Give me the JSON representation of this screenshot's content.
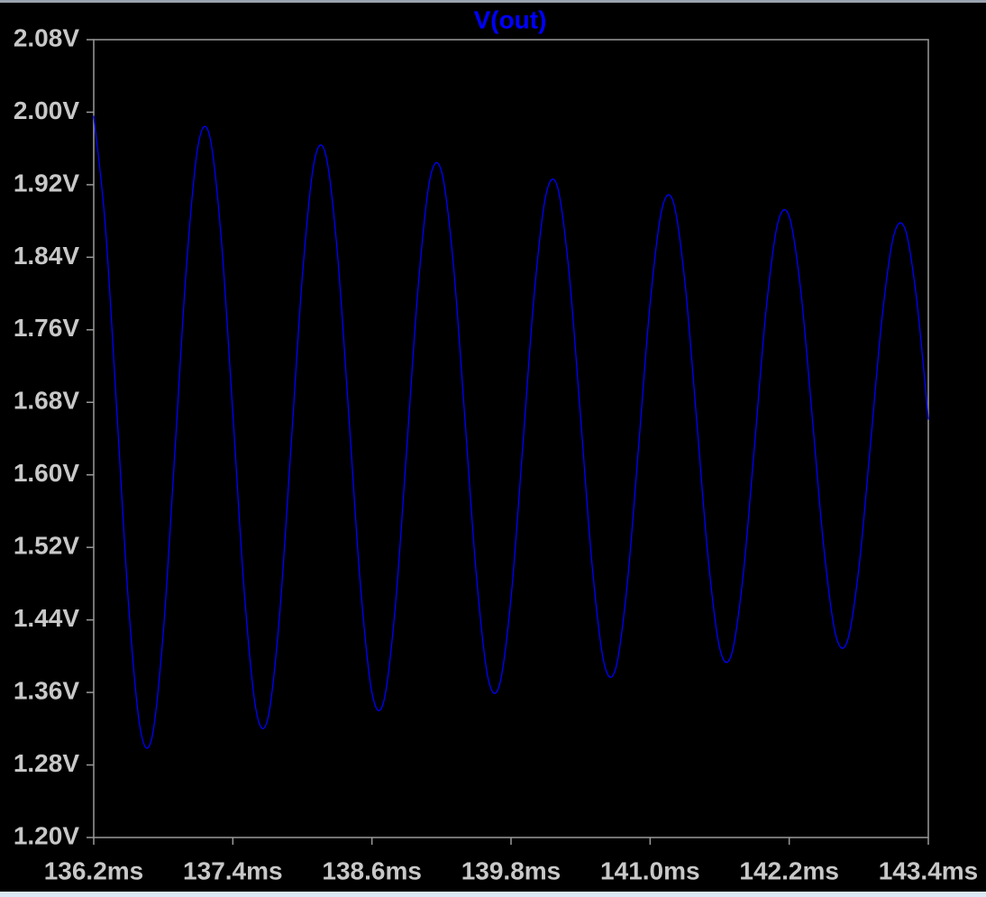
{
  "chart_data": {
    "type": "line",
    "title": "V(out)",
    "x": [
      136.2,
      136.3,
      136.4,
      136.5,
      136.6,
      136.7,
      136.8,
      136.9,
      137.0,
      137.1,
      137.2,
      137.3,
      137.4,
      137.5,
      137.6,
      137.7,
      137.8,
      137.9,
      138.0,
      138.1,
      138.2,
      138.3,
      138.4,
      138.5,
      138.6,
      138.7,
      138.8,
      138.9,
      139.0,
      139.1,
      139.2,
      139.3,
      139.4,
      139.5,
      139.6,
      139.7,
      139.8,
      139.9,
      140.0,
      140.1,
      140.2,
      140.3,
      140.4,
      140.5,
      140.6,
      140.7,
      140.8,
      140.9,
      141.0,
      141.1,
      141.2,
      141.3,
      141.4,
      141.5,
      141.6,
      141.7,
      141.8,
      141.9,
      142.0,
      142.1,
      142.2,
      142.3,
      142.4,
      142.5,
      142.6,
      142.7,
      142.8,
      142.9,
      143.0,
      143.1,
      143.2,
      143.3,
      143.4
    ],
    "series": [
      {
        "name": "V(out)",
        "color": "#0000ff",
        "values": [
          1.996,
          1.875,
          1.669,
          1.458,
          1.321,
          1.309,
          1.426,
          1.625,
          1.83,
          1.963,
          1.974,
          1.861,
          1.668,
          1.469,
          1.341,
          1.33,
          1.44,
          1.627,
          1.819,
          1.944,
          1.954,
          1.848,
          1.667,
          1.48,
          1.36,
          1.349,
          1.452,
          1.628,
          1.809,
          1.926,
          1.935,
          1.836,
          1.666,
          1.491,
          1.377,
          1.368,
          1.464,
          1.629,
          1.799,
          1.908,
          1.918,
          1.824,
          1.664,
          1.5,
          1.394,
          1.385,
          1.476,
          1.63,
          1.789,
          1.892,
          1.901,
          1.813,
          1.663,
          1.509,
          1.409,
          1.401,
          1.486,
          1.631,
          1.781,
          1.877,
          1.885,
          1.803,
          1.662,
          1.518,
          1.424,
          1.416,
          1.496,
          1.632,
          1.772,
          1.863,
          1.871,
          1.793,
          1.661
        ]
      }
    ],
    "xlim": [
      136.2,
      143.4
    ],
    "ylim": [
      1.2,
      2.08
    ],
    "xticks": [
      {
        "value": 136.2,
        "label": "136.2ms"
      },
      {
        "value": 137.4,
        "label": "137.4ms"
      },
      {
        "value": 138.6,
        "label": "138.6ms"
      },
      {
        "value": 139.8,
        "label": "139.8ms"
      },
      {
        "value": 141.0,
        "label": "141.0ms"
      },
      {
        "value": 142.2,
        "label": "142.2ms"
      },
      {
        "value": 143.4,
        "label": "143.4ms"
      }
    ],
    "yticks": [
      {
        "value": 1.2,
        "label": "1.20V"
      },
      {
        "value": 1.28,
        "label": "1.28V"
      },
      {
        "value": 1.36,
        "label": "1.36V"
      },
      {
        "value": 1.44,
        "label": "1.44V"
      },
      {
        "value": 1.52,
        "label": "1.52V"
      },
      {
        "value": 1.6,
        "label": "1.60V"
      },
      {
        "value": 1.68,
        "label": "1.68V"
      },
      {
        "value": 1.76,
        "label": "1.76V"
      },
      {
        "value": 1.84,
        "label": "1.84V"
      },
      {
        "value": 1.92,
        "label": "1.92V"
      },
      {
        "value": 2.0,
        "label": "2.00V"
      },
      {
        "value": 2.08,
        "label": "2.08V"
      }
    ],
    "grid": false
  }
}
